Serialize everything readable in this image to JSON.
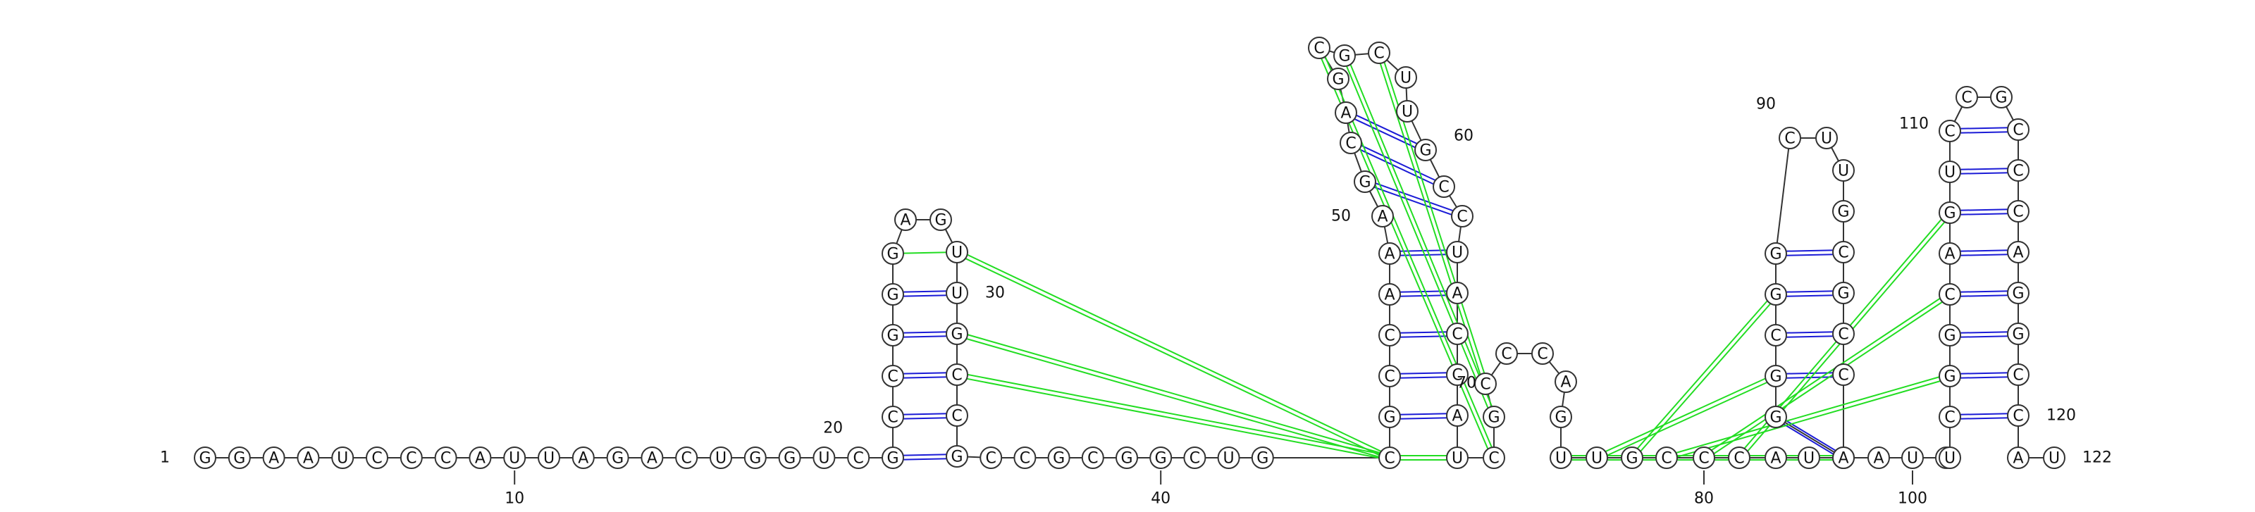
{
  "sequence": "GGAAUCCCAUUAGACUGGUCGCCGGGAGUUGCCGCCGCGGCUGCGCCAAAGCAGCGCUUGCCUACCAUCGCCCAGUUGCCCAUCGGCGGCUUGCGCCAAUCUCGGCAGUCCGCCCAGGCCAUC",
  "residue_labels": [
    {
      "text": "1",
      "residue": 1
    },
    {
      "text": "10",
      "residue": 10
    },
    {
      "text": "20",
      "residue": 20
    },
    {
      "text": "30",
      "residue": 30
    },
    {
      "text": "40",
      "residue": 40
    },
    {
      "text": "50",
      "residue": 50
    },
    {
      "text": "60",
      "residue": 60
    },
    {
      "text": "70",
      "residue": 70
    },
    {
      "text": "80",
      "residue": 80
    },
    {
      "text": "90",
      "residue": 90
    },
    {
      "text": "100",
      "residue": 100
    },
    {
      "text": "110",
      "residue": 110
    },
    {
      "text": "120",
      "residue": 120
    },
    {
      "text": "122",
      "residue": 122
    }
  ],
  "colors": {
    "canonical_pair": "#1b1bd6",
    "noncanonical_pair": "#22dd22",
    "backbone": "#333333"
  }
}
